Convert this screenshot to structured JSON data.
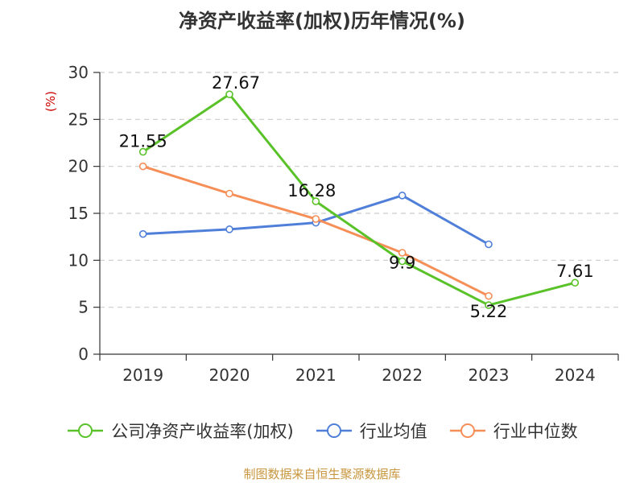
{
  "chart_data": {
    "type": "line",
    "title": "净资产收益率(加权)历年情况(%)",
    "ylabel": "(%)",
    "xlabel": "",
    "categories": [
      "2019",
      "2020",
      "2021",
      "2022",
      "2023",
      "2024"
    ],
    "ylim": [
      0,
      30
    ],
    "yticks": [
      0,
      5,
      10,
      15,
      20,
      25,
      30
    ],
    "grid": "horizontal-dashed",
    "legend_position": "bottom",
    "series": [
      {
        "name": "公司净资产收益率(加权)",
        "color": "#5ac229",
        "values": [
          21.55,
          27.67,
          16.28,
          9.9,
          5.22,
          7.61
        ],
        "labels": [
          "21.55",
          "27.67",
          "16.28",
          "9.9",
          "5.22",
          "7.61"
        ]
      },
      {
        "name": "行业均值",
        "color": "#4f7fd9",
        "values": [
          12.8,
          13.3,
          14.0,
          16.9,
          11.7,
          null
        ]
      },
      {
        "name": "行业中位数",
        "color": "#f58e57",
        "values": [
          20.0,
          17.1,
          14.4,
          10.8,
          6.2,
          null
        ]
      }
    ]
  },
  "source_text": "制图数据来自恒生聚源数据库",
  "colors": {
    "axis": "#333333",
    "grid": "#cccccc",
    "ylabel": "#cc0000",
    "source": "#c8963e"
  }
}
